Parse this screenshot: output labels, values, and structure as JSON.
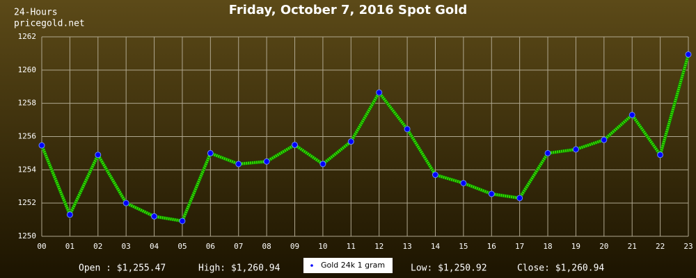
{
  "chart_data": {
    "type": "line",
    "title": "Friday, October 7, 2016 Spot Gold",
    "corner_text": [
      "24-Hours",
      "pricegold.net"
    ],
    "categories": [
      "00",
      "01",
      "02",
      "03",
      "04",
      "05",
      "06",
      "07",
      "08",
      "09",
      "10",
      "11",
      "12",
      "13",
      "14",
      "15",
      "16",
      "17",
      "18",
      "19",
      "20",
      "21",
      "22",
      "23"
    ],
    "series": [
      {
        "name": "Gold 24k 1 gram",
        "color": "#33dd00",
        "marker_color": "#0000ff",
        "values": [
          1255.47,
          1251.3,
          1254.9,
          1252.0,
          1251.2,
          1250.92,
          1255.0,
          1254.35,
          1254.5,
          1255.5,
          1254.35,
          1255.7,
          1258.65,
          1256.45,
          1253.7,
          1253.2,
          1252.55,
          1252.3,
          1255.0,
          1255.23,
          1255.8,
          1257.3,
          1254.9,
          1260.94
        ]
      }
    ],
    "ylim": [
      1250,
      1262
    ],
    "yticks": [
      1250,
      1252,
      1254,
      1256,
      1258,
      1260,
      1262
    ],
    "grid": true,
    "footer": {
      "open": "Open : $1,255.47",
      "high": "High: $1,260.94",
      "low": "Low: $1,250.92",
      "close": "Close: $1,260.94"
    }
  }
}
